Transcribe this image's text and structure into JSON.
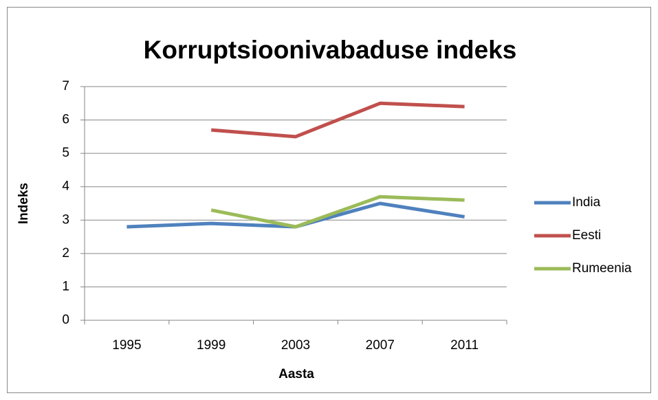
{
  "chart_data": {
    "type": "line",
    "title": "Korruptsioonivabaduse indeks",
    "x_label": "Aasta",
    "y_label": "Indeks",
    "categories": [
      "1995",
      "1999",
      "2003",
      "2007",
      "2011"
    ],
    "series": [
      {
        "name": "India",
        "color": "#4f81bd",
        "values": [
          2.8,
          2.9,
          2.8,
          3.5,
          3.1
        ]
      },
      {
        "name": "Eesti",
        "color": "#c0504d",
        "values": [
          null,
          5.7,
          5.5,
          6.5,
          6.4
        ]
      },
      {
        "name": "Rumeenia",
        "color": "#9bbb59",
        "values": [
          null,
          3.3,
          2.8,
          3.7,
          3.6
        ]
      }
    ],
    "ylim": [
      0,
      7
    ],
    "yticks": [
      0,
      1,
      2,
      3,
      4,
      5,
      6,
      7
    ],
    "grid": true,
    "legend": "right"
  }
}
